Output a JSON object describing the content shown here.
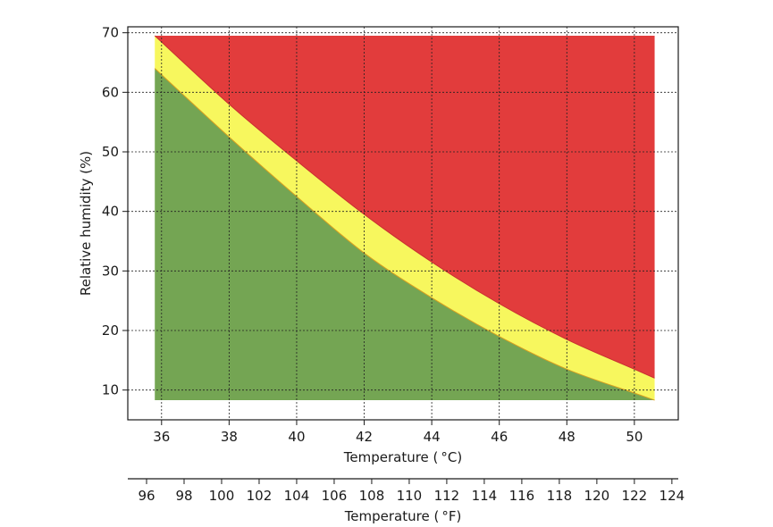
{
  "chart_data": {
    "type": "area",
    "xlabel": "Temperature ( $^{\\circ}$C)",
    "xlabel_display": "Temperature ( °C)",
    "ylabel": "Relative humidity (%)",
    "secondary_xlabel": "Temperature ( °F)",
    "xlim": [
      35.0,
      51.3
    ],
    "ylim": [
      5.0,
      71.0
    ],
    "secondary_xlim": [
      95.0,
      124.34
    ],
    "x_ticks": [
      36,
      38,
      40,
      42,
      44,
      46,
      48,
      50
    ],
    "y_ticks": [
      10,
      20,
      30,
      40,
      50,
      60,
      70
    ],
    "secondary_x_ticks": [
      96,
      98,
      100,
      102,
      104,
      106,
      108,
      110,
      112,
      114,
      116,
      118,
      120,
      122,
      124
    ],
    "grid": true,
    "x_range": [
      35.8,
      50.6
    ],
    "y_range": [
      8.3,
      69.5
    ],
    "boundaries": {
      "green_upper": [
        {
          "x": 35.8,
          "y": 64.0
        },
        {
          "x": 38.0,
          "y": 52.5
        },
        {
          "x": 40.0,
          "y": 42.5
        },
        {
          "x": 42.0,
          "y": 33.0
        },
        {
          "x": 44.0,
          "y": 25.5
        },
        {
          "x": 46.0,
          "y": 19.0
        },
        {
          "x": 48.0,
          "y": 13.5
        },
        {
          "x": 50.0,
          "y": 9.5
        },
        {
          "x": 50.6,
          "y": 8.3
        }
      ],
      "yellow_upper": [
        {
          "x": 35.8,
          "y": 69.5
        },
        {
          "x": 38.0,
          "y": 58.0
        },
        {
          "x": 40.0,
          "y": 48.5
        },
        {
          "x": 42.0,
          "y": 39.5
        },
        {
          "x": 44.0,
          "y": 31.5
        },
        {
          "x": 46.0,
          "y": 24.5
        },
        {
          "x": 48.0,
          "y": 18.5
        },
        {
          "x": 50.0,
          "y": 13.5
        },
        {
          "x": 50.6,
          "y": 12.0
        }
      ]
    },
    "colors": {
      "safe": "#74a553",
      "caution": "#f7f75e",
      "danger": "#e23c3c",
      "boundary_line": "#d9a020",
      "grid": "#222222",
      "axis": "#1a1a1a"
    }
  }
}
